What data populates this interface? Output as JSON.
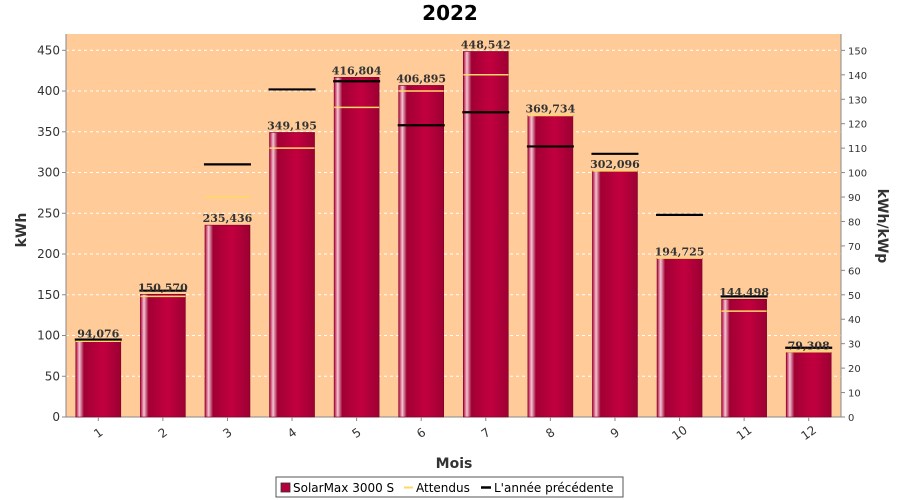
{
  "chart_data": {
    "type": "bar",
    "title": "2022",
    "xlabel": "Mois",
    "ylabel": "kWh",
    "ylabel_right": "kWh/kWp",
    "categories": [
      "1",
      "2",
      "3",
      "4",
      "5",
      "6",
      "7",
      "8",
      "9",
      "10",
      "11",
      "12"
    ],
    "ylim": [
      0,
      470
    ],
    "yticks": [
      0,
      50,
      100,
      150,
      200,
      250,
      300,
      350,
      400,
      450
    ],
    "ylim_right": [
      0,
      156.7
    ],
    "yticks_right": [
      0,
      10,
      20,
      30,
      40,
      50,
      60,
      70,
      80,
      90,
      100,
      110,
      120,
      130,
      140,
      150
    ],
    "grid": true,
    "legend_position": "bottom",
    "series": [
      {
        "name": "SolarMax 3000 S",
        "kind": "bar",
        "color": "#b5003b",
        "values": [
          94.076,
          150.57,
          235.436,
          349.195,
          416.804,
          406.895,
          448.542,
          369.734,
          302.096,
          194.725,
          144.498,
          79.308
        ],
        "labels": [
          "94,076",
          "150,570",
          "235,436",
          "349,195",
          "416,804",
          "406,895",
          "448,542",
          "369,734",
          "302,096",
          "194,725",
          "144,498",
          "79,308"
        ]
      },
      {
        "name": "Attendus",
        "kind": "marker",
        "color": "#ffd966",
        "values": [
          93,
          148,
          270,
          330,
          380,
          400,
          420,
          370,
          302,
          195,
          130,
          80
        ]
      },
      {
        "name": "L'année précédente",
        "kind": "marker",
        "color": "#000000",
        "values": [
          95,
          155,
          310,
          402,
          412,
          358,
          374,
          332,
          323,
          248,
          148,
          85
        ]
      }
    ]
  }
}
